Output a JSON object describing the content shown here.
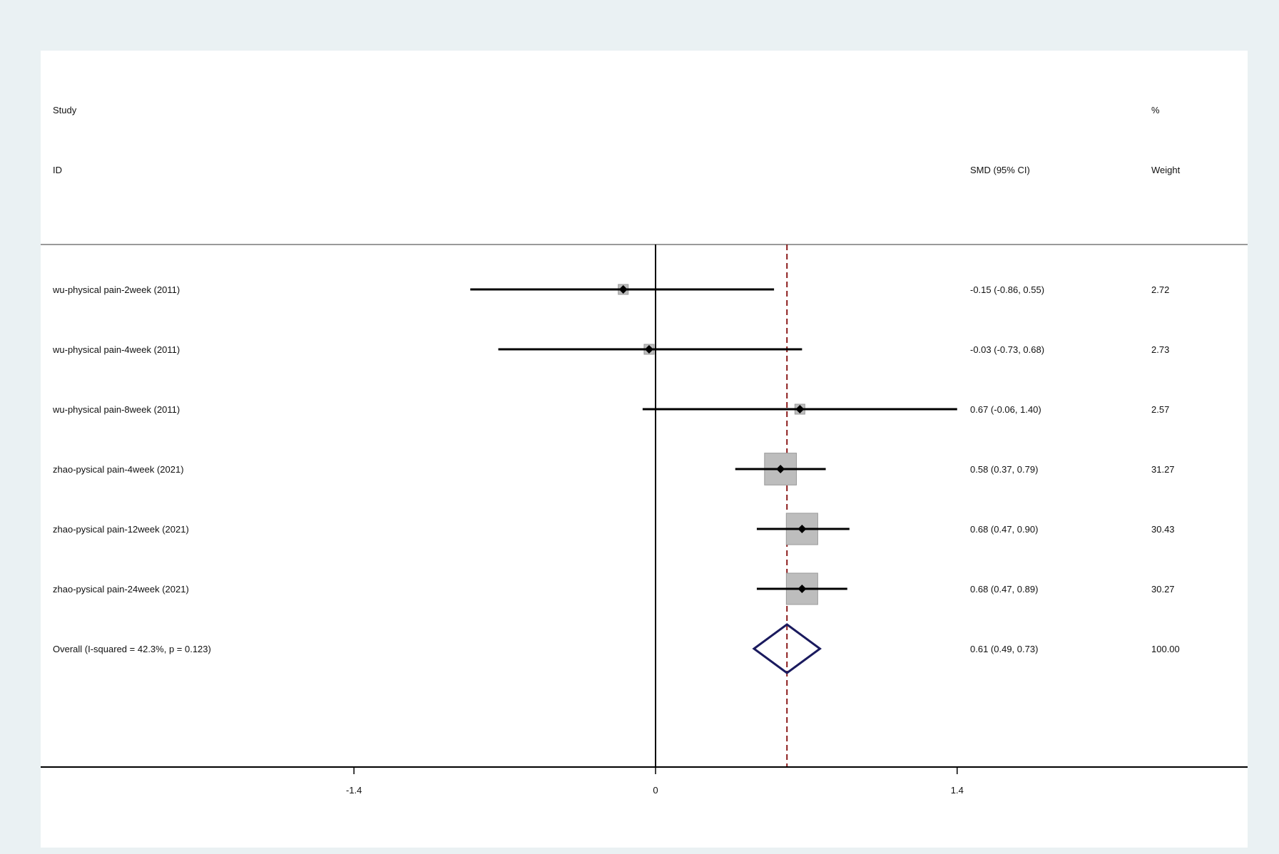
{
  "chart_data": {
    "type": "forest",
    "headers": {
      "study_line1": "Study",
      "study_line2": "ID",
      "effect": "SMD (95% CI)",
      "weight_line1": "%",
      "weight_line2": "Weight"
    },
    "studies": [
      {
        "label": "wu-physical pain-2week (2011)",
        "smd": -0.15,
        "lo": -0.86,
        "hi": 0.55,
        "ci_text": "-0.15 (-0.86, 0.55)",
        "weight": 2.72,
        "weight_text": "2.72"
      },
      {
        "label": "wu-physical pain-4week (2011)",
        "smd": -0.03,
        "lo": -0.73,
        "hi": 0.68,
        "ci_text": "-0.03 (-0.73, 0.68)",
        "weight": 2.73,
        "weight_text": "2.73"
      },
      {
        "label": "wu-physical pain-8week (2011)",
        "smd": 0.67,
        "lo": -0.06,
        "hi": 1.4,
        "ci_text": "0.67 (-0.06, 1.40)",
        "weight": 2.57,
        "weight_text": "2.57"
      },
      {
        "label": "zhao-pysical pain-4week (2021)",
        "smd": 0.58,
        "lo": 0.37,
        "hi": 0.79,
        "ci_text": "0.58 (0.37, 0.79)",
        "weight": 31.27,
        "weight_text": "31.27"
      },
      {
        "label": "zhao-pysical pain-12week (2021)",
        "smd": 0.68,
        "lo": 0.47,
        "hi": 0.9,
        "ci_text": "0.68 (0.47, 0.90)",
        "weight": 30.43,
        "weight_text": "30.43"
      },
      {
        "label": "zhao-pysical pain-24week (2021)",
        "smd": 0.68,
        "lo": 0.47,
        "hi": 0.89,
        "ci_text": "0.68 (0.47, 0.89)",
        "weight": 30.27,
        "weight_text": "30.27"
      }
    ],
    "overall": {
      "label": "Overall  (I-squared = 42.3%, p = 0.123)",
      "smd": 0.61,
      "lo": 0.49,
      "hi": 0.73,
      "ci_text": "0.61 (0.49, 0.73)",
      "weight_text": "100.00"
    },
    "x_ticks": [
      {
        "value": -1.4,
        "label": "-1.4"
      },
      {
        "value": 0,
        "label": "0"
      },
      {
        "value": 1.4,
        "label": "1.4"
      }
    ],
    "null_line": 0,
    "colors": {
      "panel_bg": "#ffffff",
      "outer_bg": "#eaf1f3",
      "ci_line": "#000000",
      "box_fill": "#bdbdbd",
      "box_stroke": "#9a9a9a",
      "overall_diamond": "#1a1a5e",
      "overall_line": "#8b1a1a",
      "header_rule": "#9a9a9a"
    }
  }
}
